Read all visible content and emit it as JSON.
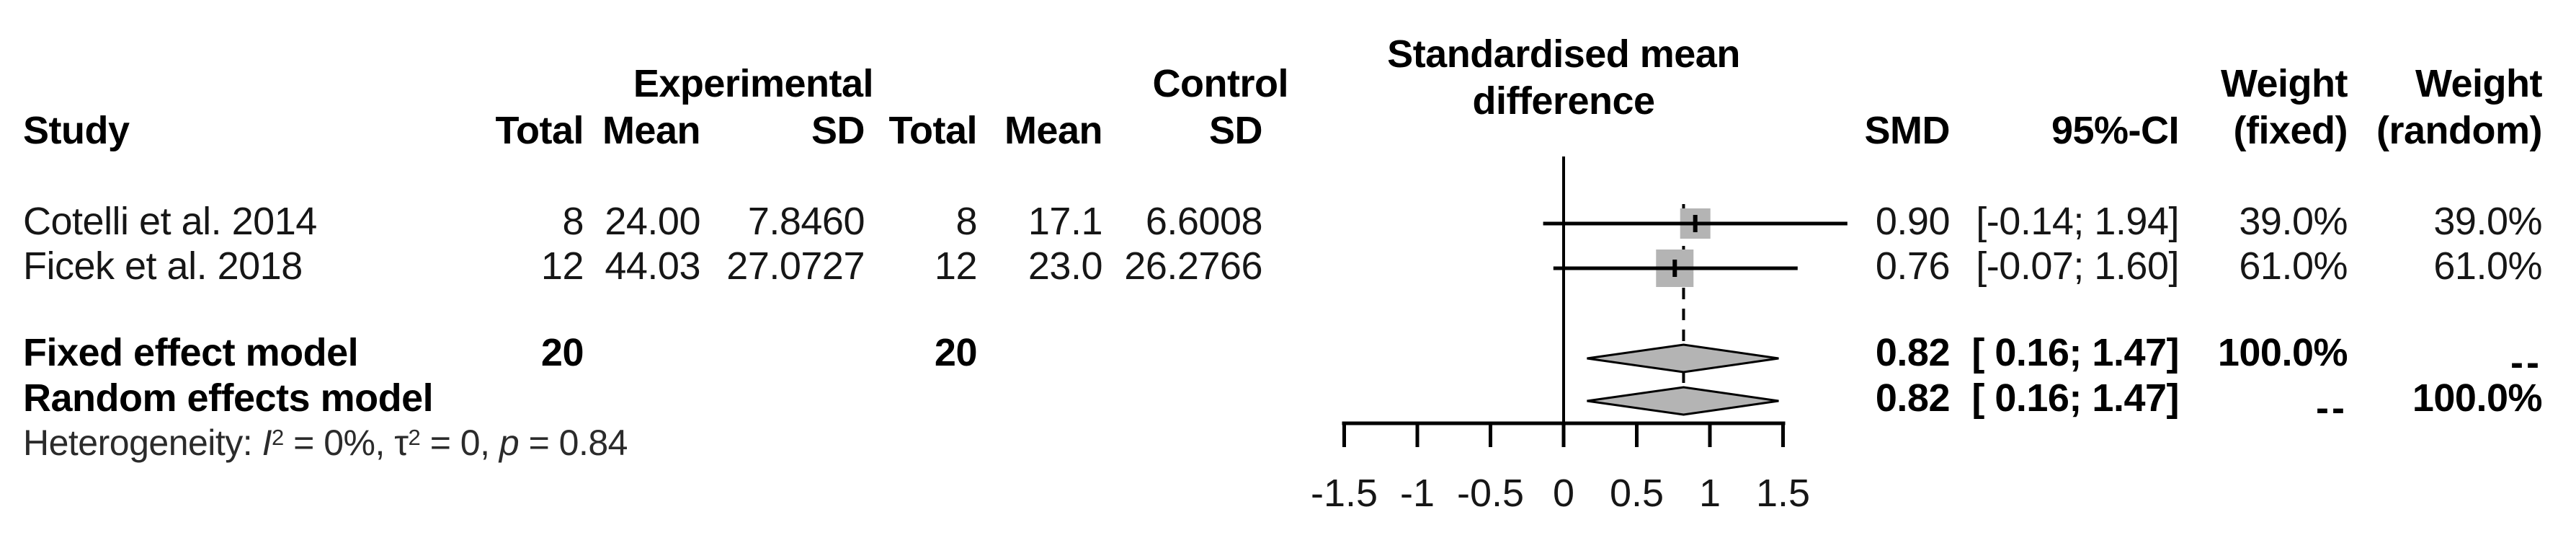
{
  "table": {
    "headers": {
      "study": "Study",
      "experimental_group": "Experimental",
      "control_group": "Control",
      "exp_total": "Total",
      "exp_mean": "Mean",
      "exp_sd": "SD",
      "ctrl_total": "Total",
      "ctrl_mean": "Mean",
      "ctrl_sd": "SD",
      "smd": "SMD",
      "ci": "95%-CI",
      "weight": "Weight",
      "weight_fixed_sub": "(fixed)",
      "weight_random_sub": "(random)"
    },
    "rows": [
      {
        "study": "Cotelli et al. 2014",
        "exp_total": "8",
        "exp_mean": "24.00",
        "exp_sd": "7.8460",
        "ctrl_total": "8",
        "ctrl_mean": "17.1",
        "ctrl_sd": "6.6008",
        "smd": "0.90",
        "ci": "[-0.14; 1.94]",
        "w_fixed": "39.0%",
        "w_random": "39.0%"
      },
      {
        "study": "Ficek et al. 2018",
        "exp_total": "12",
        "exp_mean": "44.03",
        "exp_sd": "27.0727",
        "ctrl_total": "12",
        "ctrl_mean": "23.0",
        "ctrl_sd": "26.2766",
        "smd": "0.76",
        "ci": "[-0.07; 1.60]",
        "w_fixed": "61.0%",
        "w_random": "61.0%"
      }
    ],
    "summary_rows": [
      {
        "label": "Fixed effect model",
        "exp_total": "20",
        "ctrl_total": "20",
        "smd": "0.82",
        "ci": "[ 0.16; 1.47]",
        "w_fixed": "100.0%",
        "w_random": "--"
      },
      {
        "label": "Random effects model",
        "smd": "0.82",
        "ci": "[ 0.16; 1.47]",
        "w_fixed": "--",
        "w_random": "100.0%"
      }
    ],
    "het": {
      "p1": "Heterogeneity: ",
      "i": "I",
      "sup": "2",
      "p2": " = 0%, ",
      "tau": "τ",
      "p3": " = 0, ",
      "p": "p",
      "p4": " = 0.84"
    }
  },
  "chart_data": {
    "type": "forest",
    "title": "Standardised mean difference",
    "title_lines": [
      "Standardised mean",
      "difference"
    ],
    "xlim": [
      -1.5,
      1.5
    ],
    "ticks": [
      "-1.5",
      "-1",
      "-0.5",
      "0",
      "0.5",
      "1",
      "1.5"
    ],
    "zero_line": 0,
    "overall_effect": 0.82,
    "grid": false,
    "marker_fill": "#b4b4b4",
    "line_color": "#000000",
    "studies": [
      {
        "name": "Cotelli et al. 2014",
        "smd": 0.9,
        "ci": [
          -0.14,
          1.94
        ],
        "weight_fixed_pct": 39.0,
        "weight_random_pct": 39.0
      },
      {
        "name": "Ficek et al. 2018",
        "smd": 0.76,
        "ci": [
          -0.07,
          1.6
        ],
        "weight_fixed_pct": 61.0,
        "weight_random_pct": 61.0
      }
    ],
    "summaries": [
      {
        "name": "Fixed effect model",
        "smd": 0.82,
        "ci": [
          0.16,
          1.47
        ],
        "shape": "diamond"
      },
      {
        "name": "Random effects model",
        "smd": 0.82,
        "ci": [
          0.16,
          1.47
        ],
        "shape": "diamond"
      }
    ],
    "heterogeneity": {
      "I2": "0%",
      "tau2": "0",
      "p": "0.84"
    }
  }
}
